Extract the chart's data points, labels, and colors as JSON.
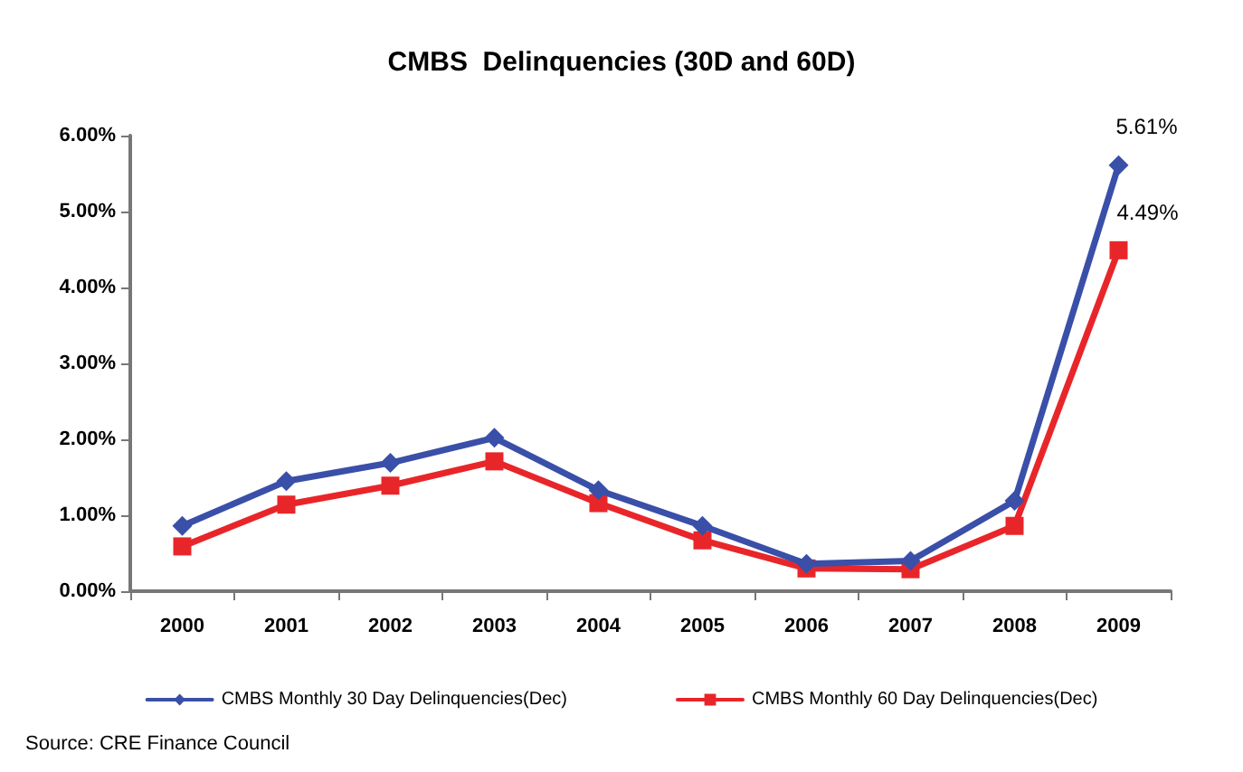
{
  "chart_data": {
    "type": "line",
    "title": "CMBS  Delinquencies (30D and 60D)",
    "categories": [
      "2000",
      "2001",
      "2002",
      "2003",
      "2004",
      "2005",
      "2006",
      "2007",
      "2008",
      "2009"
    ],
    "series": [
      {
        "name": "CMBS Monthly 30 Day Delinquencies(Dec)",
        "color": "#3a4fa8",
        "marker": "diamond",
        "values": [
          0.86,
          1.45,
          1.69,
          2.02,
          1.33,
          0.86,
          0.36,
          0.4,
          1.19,
          5.61
        ],
        "value_labels": [
          null,
          null,
          null,
          null,
          null,
          null,
          null,
          null,
          null,
          "5.61%"
        ]
      },
      {
        "name": "CMBS Monthly 60 Day Delinquencies(Dec)",
        "color": "#e8262a",
        "marker": "square",
        "values": [
          0.59,
          1.14,
          1.39,
          1.71,
          1.16,
          0.67,
          0.3,
          0.29,
          0.86,
          4.49
        ],
        "value_labels": [
          null,
          null,
          null,
          null,
          null,
          null,
          null,
          null,
          null,
          "4.49%"
        ]
      }
    ],
    "ylim": [
      0,
      6
    ],
    "yticks": [
      {
        "value": 0,
        "label": "0.00%"
      },
      {
        "value": 1,
        "label": "1.00%"
      },
      {
        "value": 2,
        "label": "2.00%"
      },
      {
        "value": 3,
        "label": "3.00%"
      },
      {
        "value": 4,
        "label": "4.00%"
      },
      {
        "value": 5,
        "label": "5.00%"
      },
      {
        "value": 6,
        "label": "6.00%"
      }
    ],
    "grid": false,
    "legend": "bottom",
    "line_style": "solid",
    "annotations": [
      "Source: CRE Finance Council"
    ]
  }
}
